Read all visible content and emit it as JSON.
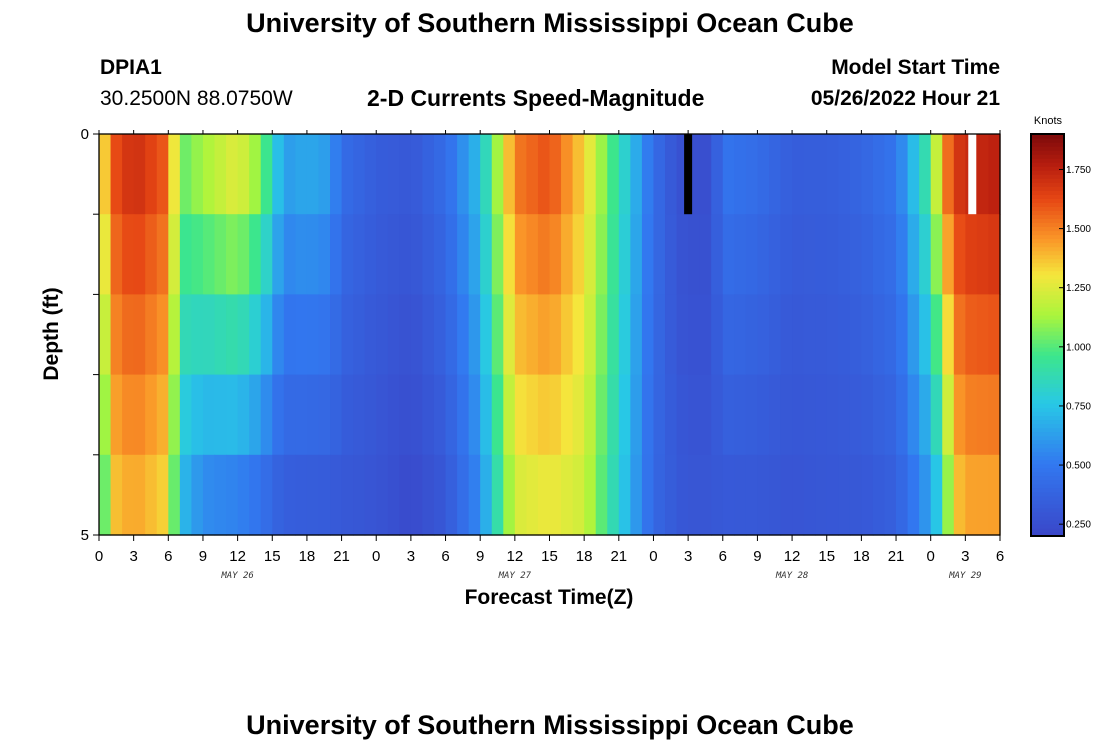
{
  "header": {
    "title": "University of Southern Mississippi Ocean Cube",
    "station": "DPIA1",
    "coords": "30.2500N  88.0750W",
    "chart_title": "2-D Currents Speed-Magnitude",
    "start_label": "Model Start Time",
    "start_value": "05/26/2022 Hour 21"
  },
  "footer": {
    "title": "University of Southern Mississippi Ocean Cube"
  },
  "chart_data": {
    "type": "heatmap",
    "title": "2-D Currents Speed-Magnitude",
    "xlabel": "Forecast Time(Z)",
    "ylabel": "Depth (ft)",
    "ylim": [
      0,
      5
    ],
    "y_tick_labels": [
      "0",
      "5"
    ],
    "x_tick_labels": [
      "0",
      "3",
      "6",
      "9",
      "12",
      "15",
      "18",
      "21",
      "0",
      "3",
      "6",
      "9",
      "12",
      "15",
      "18",
      "21",
      "0",
      "3",
      "6",
      "9",
      "12",
      "15",
      "18",
      "21",
      "0",
      "3",
      "6"
    ],
    "day_labels": [
      "MAY 26",
      "MAY 27",
      "MAY 28",
      "MAY 29"
    ],
    "x_hours_start": 0,
    "x_hours_end": 78,
    "colorbar": {
      "unit": "Knots",
      "min": 0.2,
      "max": 1.9,
      "ticks": [
        "0.250",
        "0.500",
        "0.750",
        "1.000",
        "1.250",
        "1.500",
        "1.750"
      ],
      "tick_values": [
        0.25,
        0.5,
        0.75,
        1.0,
        1.25,
        1.5,
        1.75
      ]
    },
    "depth_layers_ft": [
      0.25,
      1.0,
      2.0,
      3.0,
      4.0,
      4.75
    ],
    "speed_anchor_hours": [
      0,
      0.5,
      1,
      1.5,
      3,
      6,
      7,
      9,
      12,
      14,
      15,
      16,
      18,
      20,
      21,
      24,
      27,
      30,
      33,
      36,
      39,
      42,
      45,
      48,
      50,
      51,
      52,
      53,
      54,
      57,
      60,
      63,
      66,
      69,
      72,
      73,
      74,
      75,
      78
    ],
    "speed_anchor_surface": [
      0.95,
      1.4,
      1.6,
      1.65,
      1.75,
      1.6,
      1.05,
      1.2,
      1.35,
      1.15,
      0.9,
      0.65,
      0.7,
      0.65,
      0.45,
      0.35,
      0.32,
      0.45,
      0.75,
      1.55,
      1.65,
      1.35,
      0.9,
      0.45,
      0.28,
      0.25,
      0.25,
      0.25,
      0.5,
      0.45,
      0.35,
      0.35,
      0.4,
      0.5,
      1.0,
      1.5,
      1.7,
      1.75,
      1.8
    ],
    "speed_anchor_bottom": [
      0.85,
      1.0,
      1.2,
      1.35,
      1.4,
      1.3,
      0.7,
      0.5,
      0.45,
      0.4,
      0.35,
      0.32,
      0.3,
      0.3,
      0.3,
      0.28,
      0.22,
      0.3,
      0.55,
      1.2,
      1.25,
      1.2,
      0.8,
      0.4,
      0.32,
      0.3,
      0.3,
      0.3,
      0.3,
      0.3,
      0.28,
      0.3,
      0.3,
      0.35,
      0.6,
      0.8,
      1.3,
      1.4,
      1.4
    ],
    "markers": [
      {
        "color": "#000000",
        "hour": 51
      },
      {
        "color": "#ffffff",
        "hour": 75.6
      }
    ]
  }
}
